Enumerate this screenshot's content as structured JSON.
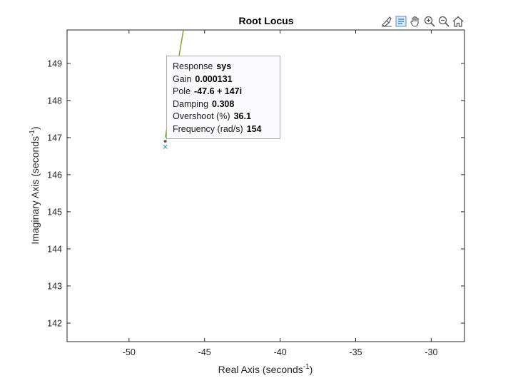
{
  "toolbar": {
    "icons": [
      "brush-icon",
      "data-tip-icon",
      "pan-icon",
      "zoom-in-icon",
      "zoom-out-icon",
      "home-icon"
    ],
    "active": "data-tip-icon"
  },
  "datatip": {
    "rows": [
      {
        "label": "Response",
        "value": "sys"
      },
      {
        "label": "Gain",
        "value": "0.000131"
      },
      {
        "label": "Pole",
        "value": "-47.6  +  147i"
      },
      {
        "label": "Damping",
        "value": "0.308"
      },
      {
        "label": "Overshoot  (%)",
        "value": "36.1"
      },
      {
        "label": "Frequency  (rad/s)",
        "value": "154"
      }
    ]
  },
  "chart_data": {
    "type": "line",
    "title": "Root Locus",
    "xlabel": "Real  Axis  (seconds",
    "xlabel_sup": "-1",
    "xlabel_end": ")",
    "ylabel": "Imaginary  Axis  (seconds",
    "ylabel_sup": "-1",
    "ylabel_end": ")",
    "xlim": [
      -54.1,
      -27.8
    ],
    "ylim": [
      141.5,
      149.9
    ],
    "xticks": [
      -50,
      -45,
      -40,
      -35,
      -30
    ],
    "yticks": [
      142,
      143,
      144,
      145,
      146,
      147,
      148,
      149
    ],
    "grid": false,
    "colors": {
      "locus": "#77ac30",
      "pole_marker": "#2a9d8f",
      "datatip_point": "#666666",
      "axes": "#262626"
    },
    "series": [
      {
        "x": [
          -47.6,
          -46.4
        ],
        "y": [
          147.0,
          149.9
        ]
      }
    ],
    "poles": [
      {
        "x": -47.6,
        "y": 146.75
      }
    ],
    "selected_point": {
      "x": -47.6,
      "y": 146.9
    }
  }
}
